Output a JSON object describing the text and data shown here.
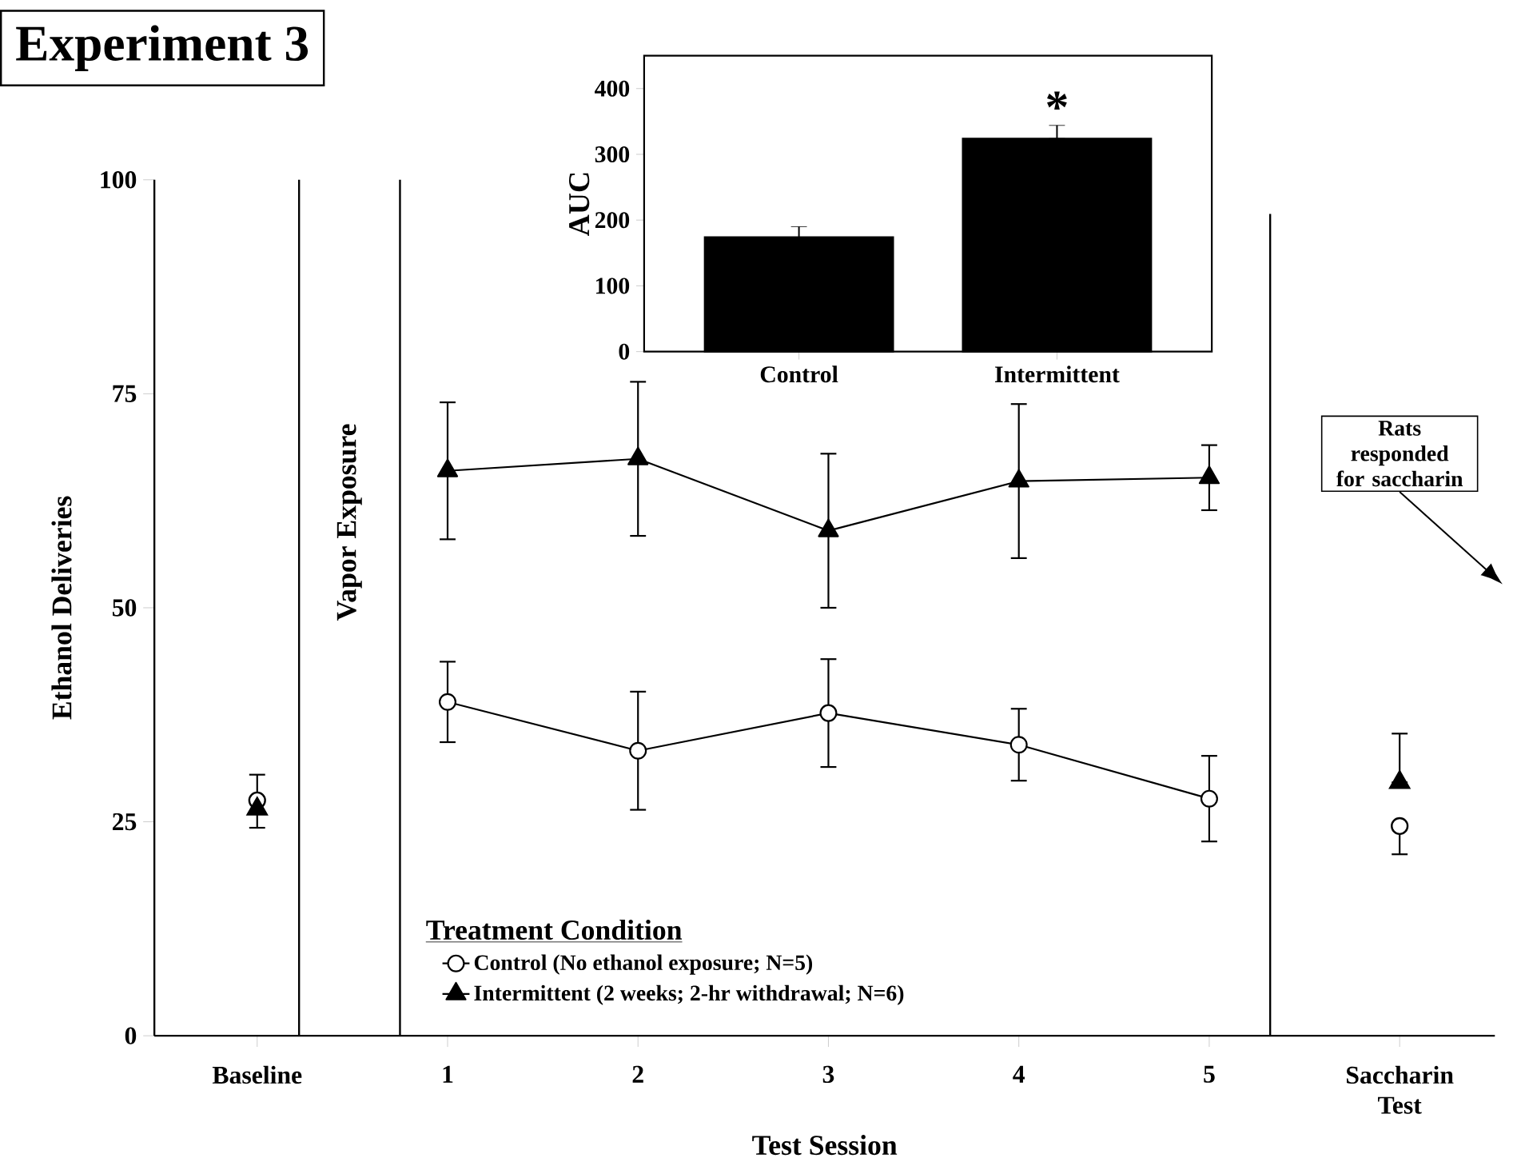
{
  "chart_data": [
    {
      "type": "line",
      "title": "Experiment 3",
      "xlabel": "Test Session",
      "ylabel": "Ethanol Deliveries",
      "legend_title": "Treatment Condition",
      "legend": "bottom",
      "xlim": [
        -0.54,
        6.5
      ],
      "ylim": [
        0,
        100
      ],
      "xticks": [
        {
          "value": 0,
          "label": "Baseline"
        },
        1,
        2,
        3,
        4,
        5,
        {
          "value": 6,
          "label": "Saccharin Test"
        }
      ],
      "yticks": [
        0,
        25,
        50,
        75,
        100
      ],
      "series": [
        {
          "name": "Control (No ethanol exposure; N=5)",
          "type": "line",
          "marker": "circle",
          "color": "#000000",
          "x": [
            1,
            2,
            3,
            4,
            5
          ],
          "values": [
            39,
            33.3,
            37.7,
            34,
            27.7
          ],
          "errors": [
            4.7,
            6.9,
            6.3,
            4.2,
            5
          ]
        },
        {
          "name": "Intermittent (2 weeks; 2-hr withdrawal; N=6)",
          "type": "line",
          "marker": "triangle",
          "color": "#000000",
          "x": [
            1,
            2,
            3,
            4,
            5
          ],
          "values": [
            66,
            67.4,
            59,
            64.8,
            65.2
          ],
          "errors": [
            8,
            9,
            9,
            9,
            3.8
          ]
        },
        {
          "type": "scatter",
          "marker": "circle",
          "color": "#000000",
          "x": [
            0,
            6
          ],
          "values": [
            27.5,
            24.5
          ],
          "errors": [
            [
              24.3,
              30.5
            ],
            [
              21.2,
              24.5
            ]
          ]
        },
        {
          "type": "scatter",
          "marker": "triangle",
          "color": "#000000",
          "x": [
            0,
            6
          ],
          "values": [
            26.5,
            29.6
          ],
          "errors": [
            null,
            [
              29.6,
              35.3
            ]
          ]
        }
      ],
      "ref_lines": [
        {
          "axis": "x",
          "value": 0.22
        },
        {
          "axis": "x",
          "value": 0.75
        },
        {
          "axis": "x",
          "value": 5.32
        }
      ],
      "annotations": [
        "Vapor Exposure",
        "Rats responded for saccharin"
      ]
    },
    {
      "type": "bar",
      "ylabel": "AUC",
      "categories": [
        "Control",
        "Intermittent"
      ],
      "values": [
        174,
        324
      ],
      "color": "#000000",
      "errors": [
        [
          174,
          190
        ],
        [
          324,
          344
        ]
      ],
      "ylim": [
        0,
        450
      ],
      "yticks": [
        0,
        100,
        200,
        300,
        400
      ],
      "annotations": [
        "*"
      ]
    }
  ]
}
